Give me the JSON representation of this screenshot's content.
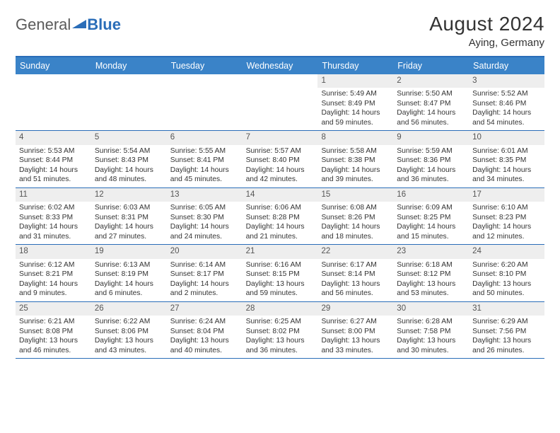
{
  "logo": {
    "text_gray": "General",
    "text_blue": "Blue"
  },
  "header": {
    "title": "August 2024",
    "location": "Aying, Germany"
  },
  "day_names": [
    "Sunday",
    "Monday",
    "Tuesday",
    "Wednesday",
    "Thursday",
    "Friday",
    "Saturday"
  ],
  "colors": {
    "accent": "#2a6db8",
    "header_bg": "#3a83c8",
    "daynum_bg": "#eeeeee",
    "text": "#333333"
  },
  "weeks": [
    [
      {
        "n": "",
        "sr": "",
        "ss": "",
        "dl1": "",
        "dl2": ""
      },
      {
        "n": "",
        "sr": "",
        "ss": "",
        "dl1": "",
        "dl2": ""
      },
      {
        "n": "",
        "sr": "",
        "ss": "",
        "dl1": "",
        "dl2": ""
      },
      {
        "n": "",
        "sr": "",
        "ss": "",
        "dl1": "",
        "dl2": ""
      },
      {
        "n": "1",
        "sr": "Sunrise: 5:49 AM",
        "ss": "Sunset: 8:49 PM",
        "dl1": "Daylight: 14 hours",
        "dl2": "and 59 minutes."
      },
      {
        "n": "2",
        "sr": "Sunrise: 5:50 AM",
        "ss": "Sunset: 8:47 PM",
        "dl1": "Daylight: 14 hours",
        "dl2": "and 56 minutes."
      },
      {
        "n": "3",
        "sr": "Sunrise: 5:52 AM",
        "ss": "Sunset: 8:46 PM",
        "dl1": "Daylight: 14 hours",
        "dl2": "and 54 minutes."
      }
    ],
    [
      {
        "n": "4",
        "sr": "Sunrise: 5:53 AM",
        "ss": "Sunset: 8:44 PM",
        "dl1": "Daylight: 14 hours",
        "dl2": "and 51 minutes."
      },
      {
        "n": "5",
        "sr": "Sunrise: 5:54 AM",
        "ss": "Sunset: 8:43 PM",
        "dl1": "Daylight: 14 hours",
        "dl2": "and 48 minutes."
      },
      {
        "n": "6",
        "sr": "Sunrise: 5:55 AM",
        "ss": "Sunset: 8:41 PM",
        "dl1": "Daylight: 14 hours",
        "dl2": "and 45 minutes."
      },
      {
        "n": "7",
        "sr": "Sunrise: 5:57 AM",
        "ss": "Sunset: 8:40 PM",
        "dl1": "Daylight: 14 hours",
        "dl2": "and 42 minutes."
      },
      {
        "n": "8",
        "sr": "Sunrise: 5:58 AM",
        "ss": "Sunset: 8:38 PM",
        "dl1": "Daylight: 14 hours",
        "dl2": "and 39 minutes."
      },
      {
        "n": "9",
        "sr": "Sunrise: 5:59 AM",
        "ss": "Sunset: 8:36 PM",
        "dl1": "Daylight: 14 hours",
        "dl2": "and 36 minutes."
      },
      {
        "n": "10",
        "sr": "Sunrise: 6:01 AM",
        "ss": "Sunset: 8:35 PM",
        "dl1": "Daylight: 14 hours",
        "dl2": "and 34 minutes."
      }
    ],
    [
      {
        "n": "11",
        "sr": "Sunrise: 6:02 AM",
        "ss": "Sunset: 8:33 PM",
        "dl1": "Daylight: 14 hours",
        "dl2": "and 31 minutes."
      },
      {
        "n": "12",
        "sr": "Sunrise: 6:03 AM",
        "ss": "Sunset: 8:31 PM",
        "dl1": "Daylight: 14 hours",
        "dl2": "and 27 minutes."
      },
      {
        "n": "13",
        "sr": "Sunrise: 6:05 AM",
        "ss": "Sunset: 8:30 PM",
        "dl1": "Daylight: 14 hours",
        "dl2": "and 24 minutes."
      },
      {
        "n": "14",
        "sr": "Sunrise: 6:06 AM",
        "ss": "Sunset: 8:28 PM",
        "dl1": "Daylight: 14 hours",
        "dl2": "and 21 minutes."
      },
      {
        "n": "15",
        "sr": "Sunrise: 6:08 AM",
        "ss": "Sunset: 8:26 PM",
        "dl1": "Daylight: 14 hours",
        "dl2": "and 18 minutes."
      },
      {
        "n": "16",
        "sr": "Sunrise: 6:09 AM",
        "ss": "Sunset: 8:25 PM",
        "dl1": "Daylight: 14 hours",
        "dl2": "and 15 minutes."
      },
      {
        "n": "17",
        "sr": "Sunrise: 6:10 AM",
        "ss": "Sunset: 8:23 PM",
        "dl1": "Daylight: 14 hours",
        "dl2": "and 12 minutes."
      }
    ],
    [
      {
        "n": "18",
        "sr": "Sunrise: 6:12 AM",
        "ss": "Sunset: 8:21 PM",
        "dl1": "Daylight: 14 hours",
        "dl2": "and 9 minutes."
      },
      {
        "n": "19",
        "sr": "Sunrise: 6:13 AM",
        "ss": "Sunset: 8:19 PM",
        "dl1": "Daylight: 14 hours",
        "dl2": "and 6 minutes."
      },
      {
        "n": "20",
        "sr": "Sunrise: 6:14 AM",
        "ss": "Sunset: 8:17 PM",
        "dl1": "Daylight: 14 hours",
        "dl2": "and 2 minutes."
      },
      {
        "n": "21",
        "sr": "Sunrise: 6:16 AM",
        "ss": "Sunset: 8:15 PM",
        "dl1": "Daylight: 13 hours",
        "dl2": "and 59 minutes."
      },
      {
        "n": "22",
        "sr": "Sunrise: 6:17 AM",
        "ss": "Sunset: 8:14 PM",
        "dl1": "Daylight: 13 hours",
        "dl2": "and 56 minutes."
      },
      {
        "n": "23",
        "sr": "Sunrise: 6:18 AM",
        "ss": "Sunset: 8:12 PM",
        "dl1": "Daylight: 13 hours",
        "dl2": "and 53 minutes."
      },
      {
        "n": "24",
        "sr": "Sunrise: 6:20 AM",
        "ss": "Sunset: 8:10 PM",
        "dl1": "Daylight: 13 hours",
        "dl2": "and 50 minutes."
      }
    ],
    [
      {
        "n": "25",
        "sr": "Sunrise: 6:21 AM",
        "ss": "Sunset: 8:08 PM",
        "dl1": "Daylight: 13 hours",
        "dl2": "and 46 minutes."
      },
      {
        "n": "26",
        "sr": "Sunrise: 6:22 AM",
        "ss": "Sunset: 8:06 PM",
        "dl1": "Daylight: 13 hours",
        "dl2": "and 43 minutes."
      },
      {
        "n": "27",
        "sr": "Sunrise: 6:24 AM",
        "ss": "Sunset: 8:04 PM",
        "dl1": "Daylight: 13 hours",
        "dl2": "and 40 minutes."
      },
      {
        "n": "28",
        "sr": "Sunrise: 6:25 AM",
        "ss": "Sunset: 8:02 PM",
        "dl1": "Daylight: 13 hours",
        "dl2": "and 36 minutes."
      },
      {
        "n": "29",
        "sr": "Sunrise: 6:27 AM",
        "ss": "Sunset: 8:00 PM",
        "dl1": "Daylight: 13 hours",
        "dl2": "and 33 minutes."
      },
      {
        "n": "30",
        "sr": "Sunrise: 6:28 AM",
        "ss": "Sunset: 7:58 PM",
        "dl1": "Daylight: 13 hours",
        "dl2": "and 30 minutes."
      },
      {
        "n": "31",
        "sr": "Sunrise: 6:29 AM",
        "ss": "Sunset: 7:56 PM",
        "dl1": "Daylight: 13 hours",
        "dl2": "and 26 minutes."
      }
    ]
  ]
}
